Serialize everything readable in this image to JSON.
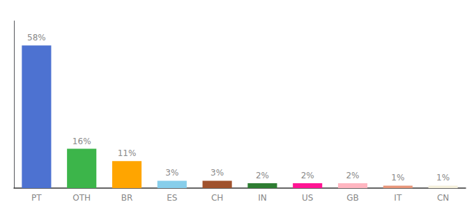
{
  "chart_data": {
    "type": "bar",
    "categories": [
      "PT",
      "OTH",
      "BR",
      "ES",
      "CH",
      "IN",
      "US",
      "GB",
      "IT",
      "CN"
    ],
    "values": [
      58,
      16,
      11,
      3,
      3,
      2,
      2,
      2,
      1,
      1
    ],
    "value_labels": [
      "58%",
      "16%",
      "11%",
      "3%",
      "3%",
      "2%",
      "2%",
      "2%",
      "1%",
      "1%"
    ],
    "colors": [
      "#4D72D1",
      "#3CB54A",
      "#FFA500",
      "#87CEEB",
      "#A0522D",
      "#2E7D32",
      "#FF1493",
      "#FFB6C1",
      "#E8967A",
      "#F5F0DC"
    ],
    "ylim": [
      0,
      68
    ],
    "yticks": [],
    "tick_labels": "x",
    "grid": false,
    "data_labels": true
  }
}
